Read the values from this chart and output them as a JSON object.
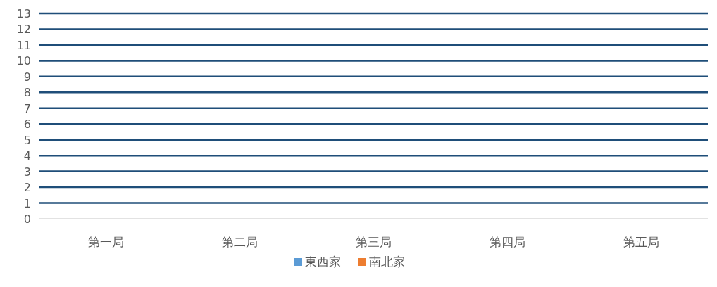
{
  "chart_data": {
    "type": "bar",
    "categories": [
      "第一局",
      "第二局",
      "第三局",
      "第四局",
      "第五局"
    ],
    "series": [
      {
        "name": "東西家",
        "color": "#5b9bd5",
        "values": [
          null,
          null,
          null,
          null,
          null
        ]
      },
      {
        "name": "南北家",
        "color": "#ed7d31",
        "values": [
          null,
          null,
          null,
          null,
          null
        ]
      }
    ],
    "ylim": [
      0,
      13
    ],
    "yticks": [
      0,
      1,
      2,
      3,
      4,
      5,
      6,
      7,
      8,
      9,
      10,
      11,
      12,
      13
    ],
    "grid": "y",
    "legend": "bottom"
  }
}
